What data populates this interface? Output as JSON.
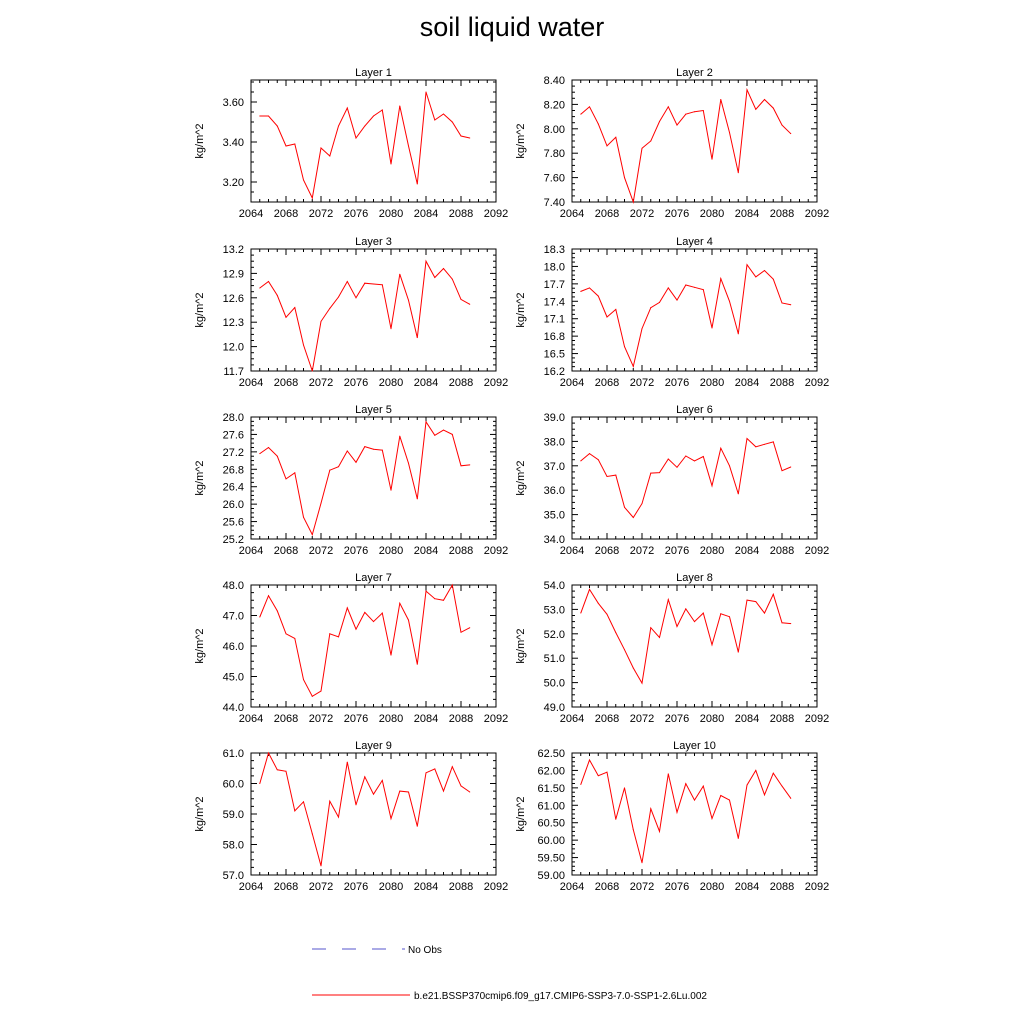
{
  "title": "soil liquid water",
  "legend": {
    "no_obs_label": "No Obs",
    "model_label": "b.e21.BSSP370cmip6.f09_g17.CMIP6-SSP3-7.0-SSP1-2.6Lu.002",
    "no_obs_color": "#5555cc",
    "model_color": "#ff0000"
  },
  "colors": {
    "line": "#ff0000",
    "axis": "#000000"
  },
  "chart_data": [
    {
      "type": "line",
      "title": "Layer 1",
      "ylabel": "kg/m^2",
      "xlim": [
        2064,
        2092
      ],
      "xticks": [
        2064,
        2068,
        2072,
        2076,
        2080,
        2084,
        2088,
        2092
      ],
      "ylim": [
        3.1,
        3.71
      ],
      "yticks": [
        "3.20",
        "3.40",
        "3.60"
      ],
      "series": [
        {
          "x": [
            2065,
            2066,
            2067,
            2068,
            2069,
            2070,
            2071,
            2072,
            2073,
            2074,
            2075,
            2076,
            2077,
            2078,
            2079,
            2080,
            2081,
            2082,
            2083,
            2084,
            2085,
            2086,
            2087,
            2088,
            2089
          ],
          "values": [
            3.53,
            3.53,
            3.48,
            3.38,
            3.39,
            3.21,
            3.12,
            3.37,
            3.33,
            3.48,
            3.57,
            3.42,
            3.48,
            3.53,
            3.56,
            3.29,
            3.58,
            3.38,
            3.19,
            3.65,
            3.51,
            3.54,
            3.5,
            3.43,
            3.42
          ]
        }
      ]
    },
    {
      "type": "line",
      "title": "Layer 2",
      "ylabel": "kg/m^2",
      "xlim": [
        2064,
        2092
      ],
      "xticks": [
        2064,
        2068,
        2072,
        2076,
        2080,
        2084,
        2088,
        2092
      ],
      "ylim": [
        7.4,
        8.4
      ],
      "yticks": [
        "7.40",
        "7.60",
        "7.80",
        "8.00",
        "8.20",
        "8.40"
      ],
      "series": [
        {
          "x": [
            2065,
            2066,
            2067,
            2068,
            2069,
            2070,
            2071,
            2072,
            2073,
            2074,
            2075,
            2076,
            2077,
            2078,
            2079,
            2080,
            2081,
            2082,
            2083,
            2084,
            2085,
            2086,
            2087,
            2088,
            2089
          ],
          "values": [
            8.12,
            8.18,
            8.04,
            7.86,
            7.93,
            7.6,
            7.4,
            7.84,
            7.9,
            8.06,
            8.18,
            8.03,
            8.12,
            8.14,
            8.15,
            7.75,
            8.24,
            7.97,
            7.64,
            8.32,
            8.16,
            8.24,
            8.17,
            8.03,
            7.96
          ]
        }
      ]
    },
    {
      "type": "line",
      "title": "Layer 3",
      "ylabel": "kg/m^2",
      "xlim": [
        2064,
        2092
      ],
      "xticks": [
        2064,
        2068,
        2072,
        2076,
        2080,
        2084,
        2088,
        2092
      ],
      "ylim": [
        11.7,
        13.2
      ],
      "yticks": [
        "11.7",
        "12.0",
        "12.3",
        "12.6",
        "12.9",
        "13.2"
      ],
      "series": [
        {
          "x": [
            2065,
            2066,
            2067,
            2068,
            2069,
            2070,
            2071,
            2072,
            2073,
            2074,
            2075,
            2076,
            2077,
            2078,
            2079,
            2080,
            2081,
            2082,
            2083,
            2084,
            2085,
            2086,
            2087,
            2088,
            2089
          ],
          "values": [
            12.72,
            12.8,
            12.63,
            12.36,
            12.48,
            12.02,
            11.7,
            12.31,
            12.47,
            12.61,
            12.8,
            12.6,
            12.78,
            12.77,
            12.76,
            12.22,
            12.89,
            12.57,
            12.11,
            13.05,
            12.85,
            12.96,
            12.83,
            12.58,
            12.52
          ]
        }
      ]
    },
    {
      "type": "line",
      "title": "Layer 4",
      "ylabel": "kg/m^2",
      "xlim": [
        2064,
        2092
      ],
      "xticks": [
        2064,
        2068,
        2072,
        2076,
        2080,
        2084,
        2088,
        2092
      ],
      "ylim": [
        16.2,
        18.3
      ],
      "yticks": [
        "16.2",
        "16.5",
        "16.8",
        "17.1",
        "17.4",
        "17.7",
        "18.0",
        "18.3"
      ],
      "series": [
        {
          "x": [
            2065,
            2066,
            2067,
            2068,
            2069,
            2070,
            2071,
            2072,
            2073,
            2074,
            2075,
            2076,
            2077,
            2078,
            2079,
            2080,
            2081,
            2082,
            2083,
            2084,
            2085,
            2086,
            2087,
            2088,
            2089
          ],
          "values": [
            17.57,
            17.63,
            17.49,
            17.13,
            17.26,
            16.62,
            16.28,
            16.93,
            17.29,
            17.38,
            17.63,
            17.42,
            17.68,
            17.64,
            17.6,
            16.94,
            17.79,
            17.4,
            16.84,
            18.03,
            17.82,
            17.93,
            17.78,
            17.37,
            17.34
          ]
        }
      ]
    },
    {
      "type": "line",
      "title": "Layer 5",
      "ylabel": "kg/m^2",
      "xlim": [
        2064,
        2092
      ],
      "xticks": [
        2064,
        2068,
        2072,
        2076,
        2080,
        2084,
        2088,
        2092
      ],
      "ylim": [
        25.2,
        28.0
      ],
      "yticks": [
        "25.2",
        "25.6",
        "26.0",
        "26.4",
        "26.8",
        "27.2",
        "27.6",
        "28.0"
      ],
      "series": [
        {
          "x": [
            2065,
            2066,
            2067,
            2068,
            2069,
            2070,
            2071,
            2072,
            2073,
            2074,
            2075,
            2076,
            2077,
            2078,
            2079,
            2080,
            2081,
            2082,
            2083,
            2084,
            2085,
            2086,
            2087,
            2088,
            2089
          ],
          "values": [
            27.16,
            27.3,
            27.1,
            26.58,
            26.72,
            25.7,
            25.3,
            26.02,
            26.78,
            26.86,
            27.22,
            26.96,
            27.32,
            27.26,
            27.24,
            26.32,
            27.56,
            26.94,
            26.12,
            27.89,
            27.58,
            27.7,
            27.6,
            26.88,
            26.9
          ]
        }
      ]
    },
    {
      "type": "line",
      "title": "Layer 6",
      "ylabel": "kg/m^2",
      "xlim": [
        2064,
        2092
      ],
      "xticks": [
        2064,
        2068,
        2072,
        2076,
        2080,
        2084,
        2088,
        2092
      ],
      "ylim": [
        34.0,
        39.0
      ],
      "yticks": [
        "34.0",
        "35.0",
        "36.0",
        "37.0",
        "38.0",
        "39.0"
      ],
      "series": [
        {
          "x": [
            2065,
            2066,
            2067,
            2068,
            2069,
            2070,
            2071,
            2072,
            2073,
            2074,
            2075,
            2076,
            2077,
            2078,
            2079,
            2080,
            2081,
            2082,
            2083,
            2084,
            2085,
            2086,
            2087,
            2088,
            2089
          ],
          "values": [
            37.2,
            37.5,
            37.25,
            36.56,
            36.62,
            35.3,
            34.88,
            35.45,
            36.7,
            36.72,
            37.28,
            36.94,
            37.4,
            37.2,
            37.38,
            36.18,
            37.72,
            37.0,
            35.85,
            38.12,
            37.78,
            37.88,
            37.98,
            36.8,
            36.95
          ]
        }
      ]
    },
    {
      "type": "line",
      "title": "Layer 7",
      "ylabel": "kg/m^2",
      "xlim": [
        2064,
        2092
      ],
      "xticks": [
        2064,
        2068,
        2072,
        2076,
        2080,
        2084,
        2088,
        2092
      ],
      "ylim": [
        44.0,
        48.0
      ],
      "yticks": [
        "44.0",
        "45.0",
        "46.0",
        "47.0",
        "48.0"
      ],
      "series": [
        {
          "x": [
            2065,
            2066,
            2067,
            2068,
            2069,
            2070,
            2071,
            2072,
            2073,
            2074,
            2075,
            2076,
            2077,
            2078,
            2079,
            2080,
            2081,
            2082,
            2083,
            2084,
            2085,
            2086,
            2087,
            2088,
            2089
          ],
          "values": [
            46.95,
            47.65,
            47.15,
            46.4,
            46.25,
            44.9,
            44.35,
            44.52,
            46.4,
            46.3,
            47.25,
            46.55,
            47.1,
            46.8,
            47.08,
            45.7,
            47.4,
            46.85,
            45.4,
            47.8,
            47.55,
            47.5,
            48.0,
            46.45,
            46.6
          ]
        }
      ]
    },
    {
      "type": "line",
      "title": "Layer 8",
      "ylabel": "kg/m^2",
      "xlim": [
        2064,
        2092
      ],
      "xticks": [
        2064,
        2068,
        2072,
        2076,
        2080,
        2084,
        2088,
        2092
      ],
      "ylim": [
        49.0,
        54.0
      ],
      "yticks": [
        "49.0",
        "50.0",
        "51.0",
        "52.0",
        "53.0",
        "54.0"
      ],
      "series": [
        {
          "x": [
            2065,
            2066,
            2067,
            2068,
            2069,
            2070,
            2071,
            2072,
            2073,
            2074,
            2075,
            2076,
            2077,
            2078,
            2079,
            2080,
            2081,
            2082,
            2083,
            2084,
            2085,
            2086,
            2087,
            2088,
            2089
          ],
          "values": [
            52.85,
            53.82,
            53.25,
            52.8,
            52.05,
            51.35,
            50.6,
            49.98,
            52.25,
            51.85,
            53.4,
            52.3,
            53.02,
            52.5,
            52.85,
            51.55,
            52.82,
            52.7,
            51.25,
            53.38,
            53.32,
            52.85,
            53.62,
            52.45,
            52.42
          ]
        }
      ]
    },
    {
      "type": "line",
      "title": "Layer 9",
      "ylabel": "kg/m^2",
      "xlim": [
        2064,
        2092
      ],
      "xticks": [
        2064,
        2068,
        2072,
        2076,
        2080,
        2084,
        2088,
        2092
      ],
      "ylim": [
        57.0,
        61.0
      ],
      "yticks": [
        "57.0",
        "58.0",
        "59.0",
        "60.0",
        "61.0"
      ],
      "series": [
        {
          "x": [
            2065,
            2066,
            2067,
            2068,
            2069,
            2070,
            2071,
            2072,
            2073,
            2074,
            2075,
            2076,
            2077,
            2078,
            2079,
            2080,
            2081,
            2082,
            2083,
            2084,
            2085,
            2086,
            2087,
            2088,
            2089
          ],
          "values": [
            60.0,
            61.0,
            60.45,
            60.4,
            59.1,
            59.4,
            58.35,
            57.3,
            59.42,
            58.9,
            60.7,
            59.3,
            60.22,
            59.65,
            60.1,
            58.85,
            59.75,
            59.72,
            58.6,
            60.35,
            60.48,
            59.75,
            60.55,
            59.92,
            59.72
          ]
        }
      ]
    },
    {
      "type": "line",
      "title": "Layer 10",
      "ylabel": "kg/m^2",
      "xlim": [
        2064,
        2092
      ],
      "xticks": [
        2064,
        2068,
        2072,
        2076,
        2080,
        2084,
        2088,
        2092
      ],
      "ylim": [
        59.0,
        62.5
      ],
      "yticks": [
        "59.00",
        "59.50",
        "60.00",
        "60.50",
        "61.00",
        "61.50",
        "62.00",
        "62.50"
      ],
      "series": [
        {
          "x": [
            2065,
            2066,
            2067,
            2068,
            2069,
            2070,
            2071,
            2072,
            2073,
            2074,
            2075,
            2076,
            2077,
            2078,
            2079,
            2080,
            2081,
            2082,
            2083,
            2084,
            2085,
            2086,
            2087,
            2088,
            2089
          ],
          "values": [
            61.6,
            62.3,
            61.85,
            61.95,
            60.6,
            61.5,
            60.3,
            59.35,
            60.9,
            60.25,
            61.9,
            60.8,
            61.62,
            61.15,
            61.55,
            60.62,
            61.28,
            61.15,
            60.05,
            61.58,
            62.0,
            61.3,
            61.92,
            61.55,
            61.2
          ]
        }
      ]
    }
  ]
}
